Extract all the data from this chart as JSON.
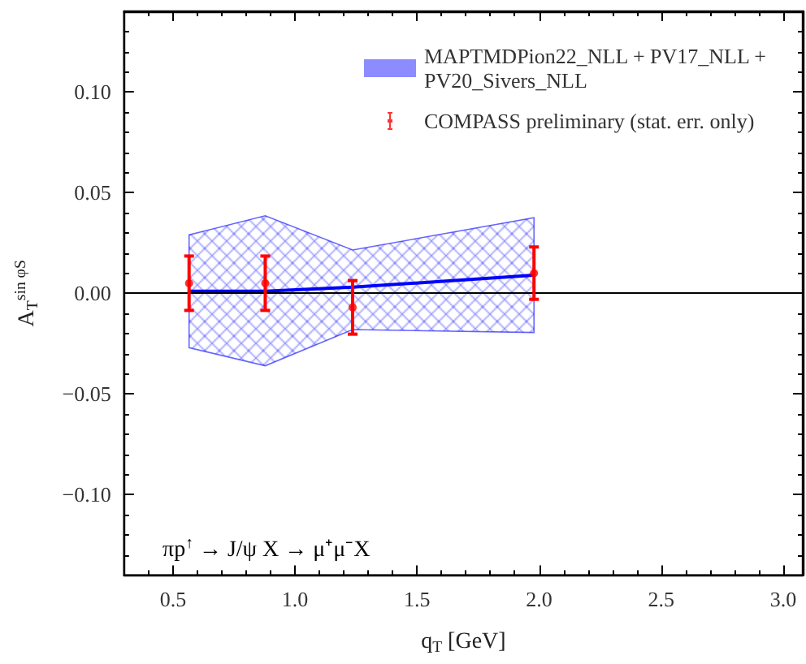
{
  "chart_data": {
    "type": "line",
    "xlabel": "q$_{T}$ [GeV]",
    "ylabel": "A$_{T}$$^{sin φS}$",
    "annotations": [
      "πp$^{↑}$ → J/ψ X → μ⁺μ⁻X"
    ],
    "xlim": [
      0.3,
      3.08
    ],
    "ylim": [
      -0.14,
      0.14
    ],
    "xticks": [
      {
        "value": 0.5,
        "label": "0.5"
      },
      {
        "value": 1.0,
        "label": "1.0"
      },
      {
        "value": 1.5,
        "label": "1.5"
      },
      {
        "value": 2.0,
        "label": "2.0"
      },
      {
        "value": 2.5,
        "label": "2.5"
      },
      {
        "value": 3.0,
        "label": "3.0"
      }
    ],
    "yticks": [
      {
        "value": -0.1,
        "label": "−0.10"
      },
      {
        "value": -0.05,
        "label": "−0.05"
      },
      {
        "value": 0,
        "label": "0.00"
      },
      {
        "value": 0.05,
        "label": "0.05"
      },
      {
        "value": 0.1,
        "label": "0.10"
      }
    ],
    "series": [
      {
        "name": "MAPTMDPion22_NLL + PV17_NLL + PV20_Sivers_NLL",
        "color": "#0000ff",
        "x": [
          0.566,
          0.878,
          1.236,
          1.979
        ],
        "values": [
          0.001,
          0.001,
          0.003,
          0.009
        ],
        "lower": [
          -0.027,
          -0.036,
          -0.018,
          -0.0195
        ],
        "upper": [
          0.029,
          0.0385,
          0.0215,
          0.0375
        ]
      },
      {
        "name": "COMPASS preliminary (stat. err. only)",
        "type": "scatter",
        "marker": "circle",
        "color": "#ff0000",
        "x": [
          0.566,
          0.878,
          1.236,
          1.979
        ],
        "values": [
          0.005,
          0.005,
          -0.007,
          0.01
        ],
        "errors": [
          0.0135,
          0.0135,
          0.0133,
          0.013
        ]
      }
    ],
    "ref_lines": [
      {
        "axis": "y",
        "value": 0,
        "color": "#000000"
      }
    ],
    "legend": "top right",
    "grid": false
  }
}
